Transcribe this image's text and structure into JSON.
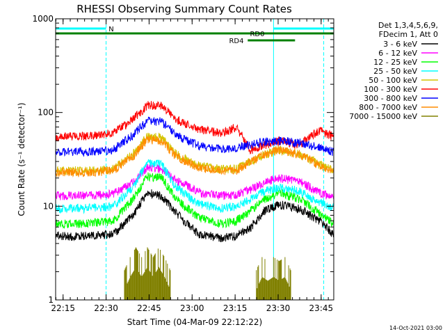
{
  "chart_data": {
    "type": "line",
    "title": "RHESSI Observing Summary Count Rates",
    "xlabel": "Start Time (04-Mar-09 22:12:22)",
    "ylabel": "Count Rate (s⁻¹ detector⁻¹)",
    "x_unit": "minutes after 22:12:22",
    "xlim": [
      0,
      97
    ],
    "ylim": [
      1,
      1000
    ],
    "y_scale": "log",
    "x_ticks": [
      {
        "label": "22:15",
        "value": 2.6
      },
      {
        "label": "22:30",
        "value": 17.6
      },
      {
        "label": "22:45",
        "value": 32.6
      },
      {
        "label": "23:00",
        "value": 47.6
      },
      {
        "label": "23:15",
        "value": 62.6
      },
      {
        "label": "23:30",
        "value": 77.6
      },
      {
        "label": "23:45",
        "value": 92.6
      }
    ],
    "y_ticks": [
      {
        "label": "1",
        "value": 1
      },
      {
        "label": "10",
        "value": 10
      },
      {
        "label": "100",
        "value": 100
      },
      {
        "label": "1000",
        "value": 1000
      }
    ],
    "legend_header": [
      "Det 1,3,4,5,6,9,",
      "FDecim 1, Att 0"
    ],
    "legend_position": "right",
    "series": [
      {
        "name": "3 - 6 keV",
        "color": "#000000",
        "x": [
          0,
          10,
          20,
          27,
          32,
          37,
          42,
          50,
          58,
          63,
          68,
          73,
          78,
          85,
          92,
          97
        ],
        "values": [
          4.8,
          4.8,
          5.0,
          8.0,
          14,
          13,
          8.5,
          5.0,
          4.6,
          4.8,
          6.0,
          9.0,
          10.5,
          9.5,
          7.0,
          5.0
        ]
      },
      {
        "name": "6 - 12 keV",
        "color": "#ff00ff",
        "x": [
          0,
          10,
          20,
          27,
          32,
          37,
          42,
          50,
          58,
          63,
          68,
          73,
          78,
          85,
          92,
          97
        ],
        "values": [
          13,
          13,
          13.5,
          18,
          26,
          25,
          19,
          14,
          13,
          13.5,
          15,
          18,
          20,
          18.5,
          14,
          12.5
        ]
      },
      {
        "name": "12 - 25 keV",
        "color": "#00ff00",
        "x": [
          0,
          10,
          20,
          27,
          32,
          37,
          42,
          50,
          58,
          63,
          68,
          73,
          78,
          85,
          92,
          97
        ],
        "values": [
          6.5,
          6.5,
          7,
          12,
          21,
          20,
          12,
          7.5,
          6.5,
          7,
          9,
          12,
          14,
          12,
          8.5,
          6.5
        ]
      },
      {
        "name": "25 - 50 keV",
        "color": "#00ffff",
        "x": [
          0,
          10,
          20,
          27,
          32,
          37,
          42,
          50,
          58,
          63,
          68,
          73,
          78,
          85,
          92,
          97
        ],
        "values": [
          9.5,
          9.5,
          10,
          16,
          30,
          28,
          16,
          10.5,
          9.5,
          10,
          12,
          14.5,
          16,
          14.5,
          11,
          9.5
        ]
      },
      {
        "name": "50 - 100 keV",
        "color": "#d4c400",
        "x": [
          0,
          10,
          20,
          27,
          32,
          37,
          42,
          50,
          58,
          63,
          68,
          73,
          78,
          85,
          92,
          97
        ],
        "values": [
          24,
          24,
          25,
          36,
          56,
          54,
          36,
          27,
          25,
          25,
          30,
          36,
          40,
          36,
          28,
          24
        ]
      },
      {
        "name": "100 - 300 keV",
        "color": "#ff0000",
        "x": [
          0,
          10,
          20,
          27,
          32,
          37,
          42,
          50,
          58,
          63,
          68,
          73,
          78,
          85,
          92,
          97
        ],
        "values": [
          55,
          56,
          60,
          85,
          120,
          118,
          85,
          66,
          60,
          70,
          40,
          45,
          50,
          45,
          65,
          55
        ]
      },
      {
        "name": "300 - 800 keV",
        "color": "#0000ff",
        "x": [
          0,
          10,
          20,
          27,
          32,
          37,
          42,
          50,
          58,
          63,
          68,
          73,
          78,
          85,
          92,
          97
        ],
        "values": [
          38,
          38,
          40,
          58,
          82,
          80,
          58,
          44,
          41,
          42,
          46,
          49,
          50,
          48,
          42,
          38
        ]
      },
      {
        "name": "800 - 7000 keV",
        "color": "#ff8c00",
        "x": [
          0,
          10,
          20,
          27,
          32,
          37,
          42,
          50,
          58,
          63,
          68,
          73,
          78,
          85,
          92,
          97
        ],
        "values": [
          23,
          23,
          24,
          34,
          52,
          50,
          34,
          26,
          24,
          24,
          30,
          36,
          40,
          36,
          27,
          23
        ]
      },
      {
        "name": "7000 - 15000 keV",
        "color": "#808000",
        "x": [
          24,
          26,
          28,
          30,
          32,
          34,
          36,
          38,
          40,
          70,
          72,
          74,
          76,
          78,
          80,
          82
        ],
        "values": [
          1.6,
          2.2,
          2.8,
          2.2,
          2.8,
          2.2,
          2.8,
          2.2,
          1.6,
          1.6,
          2.2,
          2.0,
          2.2,
          2.0,
          2.2,
          1.6
        ]
      }
    ],
    "flags": [
      {
        "label": "N",
        "color": "#00ffff",
        "segments": [
          [
            0,
            17.6
          ],
          [
            76,
            97
          ]
        ]
      },
      {
        "label": "RD0",
        "color": "#008000",
        "segments": [
          [
            0,
            97
          ]
        ]
      },
      {
        "label": "RD4",
        "color": "#008000",
        "segments": [
          [
            67,
            83.5
          ]
        ]
      }
    ],
    "vertical_markers": {
      "color": "#00ffff",
      "x": [
        0,
        17.6,
        76,
        93.5
      ]
    },
    "grid": false
  },
  "footer": {
    "timestamp": "14-Oct-2021 03:00"
  }
}
